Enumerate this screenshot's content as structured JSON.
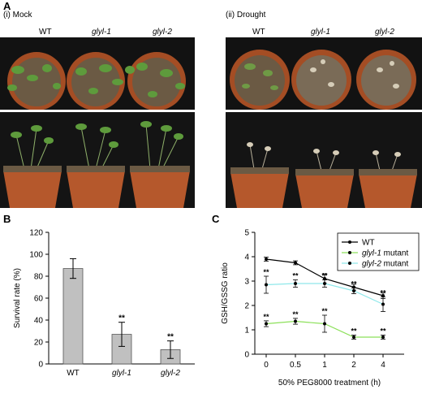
{
  "panel_a": {
    "letter": "A",
    "mock": {
      "label": "(i)   Mock",
      "genotypes": [
        "WT",
        "glyl-1",
        "glyl-2"
      ]
    },
    "drought": {
      "label": "(ii)   Drought",
      "genotypes": [
        "WT",
        "glyl-1",
        "glyl-2"
      ]
    },
    "colors": {
      "background": "#141414",
      "pot": "#b5582c",
      "soil": "#6b5a44",
      "leaf": "#5e9b3c"
    }
  },
  "chart_data": [
    {
      "panel": "B",
      "type": "bar",
      "categories": [
        "WT",
        "glyl-1",
        "glyl-2"
      ],
      "values": [
        87,
        27,
        13
      ],
      "errors": [
        9,
        11,
        8
      ],
      "significance": [
        "",
        "**",
        "**"
      ],
      "ylabel": "Survival rate (%)",
      "ylim": [
        0,
        120
      ],
      "yticks": [
        0,
        20,
        40,
        60,
        80,
        100,
        120
      ],
      "bar_color": "#c0c0c0",
      "grid": false
    },
    {
      "panel": "C",
      "type": "line",
      "x": [
        0,
        0.5,
        1,
        2,
        4
      ],
      "xtick_labels": [
        "0",
        "0.5",
        "1",
        "2",
        "4"
      ],
      "xlabel": "50% PEG8000 treatment (h)",
      "ylabel": "GSH/GSSG ratio",
      "ylim": [
        0,
        5
      ],
      "yticks": [
        0,
        1,
        2,
        3,
        4,
        5
      ],
      "legend_position": "top-right",
      "grid": false,
      "series": [
        {
          "name": "WT",
          "legend_italic": "",
          "legend_suffix": "",
          "color": "#000000",
          "values": [
            3.9,
            3.75,
            3.1,
            2.75,
            2.4
          ],
          "errors": [
            0.08,
            0.08,
            0.2,
            0.12,
            0.12
          ],
          "significance": [
            "",
            "",
            "",
            "",
            ""
          ]
        },
        {
          "name": "glyl-1 mutant",
          "legend_italic": "glyl-1",
          "legend_suffix": " mutant",
          "color": "#8ce05a",
          "values": [
            1.25,
            1.35,
            1.25,
            0.7,
            0.7
          ],
          "errors": [
            0.12,
            0.12,
            0.35,
            0.08,
            0.08
          ],
          "significance": [
            "**",
            "**",
            "**",
            "**",
            "**"
          ]
        },
        {
          "name": "glyl-2 mutant",
          "legend_italic": "glyl-2",
          "legend_suffix": " mutant",
          "color": "#8fe8ea",
          "values": [
            2.85,
            2.9,
            2.9,
            2.6,
            2.05
          ],
          "errors": [
            0.35,
            0.15,
            0.15,
            0.12,
            0.3
          ],
          "significance": [
            "**",
            "**",
            "**",
            "**",
            "**"
          ]
        }
      ]
    }
  ]
}
